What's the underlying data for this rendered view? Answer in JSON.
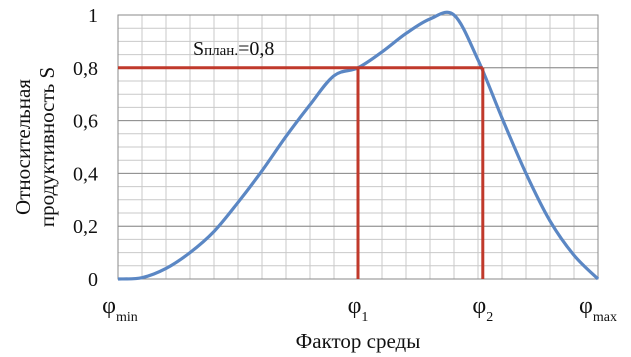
{
  "chart_data": {
    "type": "line",
    "title": "",
    "xlabel": "Фактор среды",
    "ylabel_lines": [
      "Относительная",
      "продуктивность S"
    ],
    "ylim": [
      0,
      1
    ],
    "y_ticks": [
      "0",
      "0,2",
      "0,4",
      "0,6",
      "0,8",
      "1"
    ],
    "y_tick_values": [
      0,
      0.2,
      0.4,
      0.6,
      0.8,
      1.0
    ],
    "xlim": [
      0,
      1
    ],
    "x_labels": [
      {
        "base": "φ",
        "sub": "min",
        "x": 0.0
      },
      {
        "base": "φ",
        "sub": "1",
        "x": 0.5
      },
      {
        "base": "φ",
        "sub": "2",
        "x": 0.76
      },
      {
        "base": "φ",
        "sub": "max",
        "x": 1.0
      }
    ],
    "grid": true,
    "series": [
      {
        "color": "#5b87c4",
        "x": [
          0.0,
          0.05,
          0.1,
          0.15,
          0.2,
          0.25,
          0.3,
          0.35,
          0.4,
          0.45,
          0.5,
          0.55,
          0.6,
          0.65,
          0.7,
          0.75,
          0.8,
          0.85,
          0.9,
          0.95,
          1.0
        ],
        "y": [
          0.0,
          0.005,
          0.04,
          0.1,
          0.18,
          0.29,
          0.41,
          0.54,
          0.66,
          0.77,
          0.8,
          0.86,
          0.93,
          0.985,
          1.0,
          0.83,
          0.61,
          0.4,
          0.22,
          0.09,
          0.0
        ]
      }
    ],
    "threshold": {
      "label_main": "S",
      "label_sub": "план.",
      "label_rest": "=0,8",
      "value": 0.8,
      "color": "#c0392b",
      "x_start": 0.0,
      "x1": 0.5,
      "x2": 0.76
    }
  }
}
